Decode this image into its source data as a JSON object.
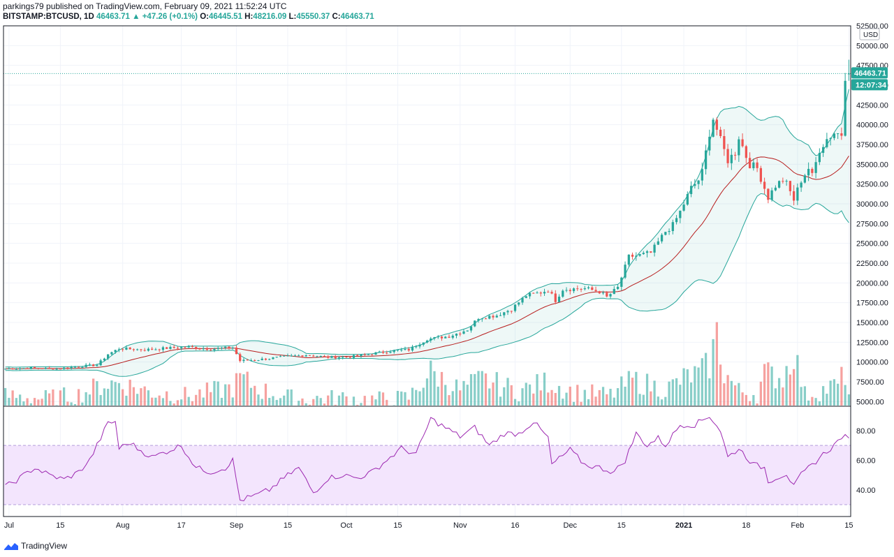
{
  "header": {
    "publisher_line": "parkings79 published on TradingView.com, February 09, 2021 11:52:24 UTC",
    "symbol": "BITSTAMP:BTCUSD, 1D",
    "last": "46463.71",
    "change": "▲ +47.26 (+0.1%)",
    "o_label": "O:",
    "o_value": "46445.51",
    "h_label": "H:",
    "h_value": "48216.09",
    "l_label": "L:",
    "l_value": "45550.37",
    "c_label": "C:",
    "c_value": "46463.71"
  },
  "footer": {
    "brand": "TradingView"
  },
  "colors": {
    "up": "#26a69a",
    "down": "#ef5350",
    "band": "#26a69a",
    "basis": "#b71c1c",
    "rsi": "#9c27b0",
    "rsi_fill": "#f3e5fd"
  },
  "chart_data": [
    {
      "type": "candlestick",
      "title": "BITSTAMP:BTCUSD, 1D",
      "currency": "USD",
      "ylim": [
        4500,
        52500
      ],
      "y_ticks": [
        5000,
        7500,
        10000,
        12500,
        15000,
        17500,
        20000,
        22500,
        25000,
        27500,
        30000,
        32500,
        35000,
        37500,
        40000,
        42500,
        45000,
        47500,
        50000,
        52500
      ],
      "x_ticks": [
        {
          "label": "Jul",
          "day": 1
        },
        {
          "label": "15",
          "day": 15
        },
        {
          "label": "Aug",
          "day": 32
        },
        {
          "label": "17",
          "day": 48
        },
        {
          "label": "Sep",
          "day": 63
        },
        {
          "label": "15",
          "day": 77
        },
        {
          "label": "Oct",
          "day": 93
        },
        {
          "label": "15",
          "day": 107
        },
        {
          "label": "Nov",
          "day": 124
        },
        {
          "label": "16",
          "day": 139
        },
        {
          "label": "Dec",
          "day": 154
        },
        {
          "label": "15",
          "day": 168
        },
        {
          "label": "2021",
          "day": 185
        },
        {
          "label": "18",
          "day": 202
        },
        {
          "label": "Feb",
          "day": 216
        },
        {
          "label": "15",
          "day": 230
        }
      ],
      "last_price_label": "46463.71",
      "countdown_label": "12:07:34",
      "close_keypoints": [
        [
          0,
          9150
        ],
        [
          7,
          9250
        ],
        [
          14,
          9150
        ],
        [
          21,
          9500
        ],
        [
          25,
          9600
        ],
        [
          28,
          11000
        ],
        [
          31,
          11700
        ],
        [
          38,
          11550
        ],
        [
          44,
          11750
        ],
        [
          50,
          11900
        ],
        [
          56,
          11650
        ],
        [
          62,
          11850
        ],
        [
          64,
          10150
        ],
        [
          70,
          10350
        ],
        [
          76,
          10650
        ],
        [
          82,
          10900
        ],
        [
          88,
          10600
        ],
        [
          94,
          10650
        ],
        [
          100,
          11050
        ],
        [
          106,
          11450
        ],
        [
          110,
          11550
        ],
        [
          115,
          12900
        ],
        [
          121,
          13250
        ],
        [
          126,
          14100
        ],
        [
          129,
          15600
        ],
        [
          134,
          15900
        ],
        [
          138,
          16700
        ],
        [
          142,
          18400
        ],
        [
          146,
          18800
        ],
        [
          148,
          19100
        ],
        [
          150,
          17800
        ],
        [
          152,
          19200
        ],
        [
          158,
          19300
        ],
        [
          162,
          18900
        ],
        [
          164,
          18200
        ],
        [
          167,
          19400
        ],
        [
          170,
          23300
        ],
        [
          173,
          23500
        ],
        [
          176,
          23800
        ],
        [
          180,
          26500
        ],
        [
          182,
          27300
        ],
        [
          184,
          29000
        ],
        [
          187,
          32000
        ],
        [
          189,
          33000
        ],
        [
          190,
          34000
        ],
        [
          192,
          39000
        ],
        [
          193,
          40800
        ],
        [
          195,
          38000
        ],
        [
          197,
          35500
        ],
        [
          199,
          36500
        ],
        [
          200,
          38500
        ],
        [
          202,
          36000
        ],
        [
          203,
          35000
        ],
        [
          205,
          34500
        ],
        [
          207,
          32000
        ],
        [
          208,
          30800
        ],
        [
          210,
          32300
        ],
        [
          212,
          33000
        ],
        [
          213,
          32500
        ],
        [
          215,
          30500
        ],
        [
          217,
          33000
        ],
        [
          219,
          34500
        ],
        [
          220,
          33500
        ],
        [
          222,
          36900
        ],
        [
          224,
          38200
        ],
        [
          226,
          39000
        ],
        [
          228,
          38800
        ],
        [
          229,
          46200
        ],
        [
          230,
          46463
        ]
      ],
      "volume_keypoints": [
        [
          0,
          6200
        ],
        [
          10,
          5800
        ],
        [
          20,
          6400
        ],
        [
          27,
          8200
        ],
        [
          31,
          8400
        ],
        [
          40,
          6800
        ],
        [
          50,
          6200
        ],
        [
          62,
          7600
        ],
        [
          64,
          9200
        ],
        [
          70,
          7100
        ],
        [
          80,
          5600
        ],
        [
          90,
          5900
        ],
        [
          100,
          5600
        ],
        [
          110,
          5900
        ],
        [
          116,
          10200
        ],
        [
          124,
          7200
        ],
        [
          130,
          9000
        ],
        [
          140,
          7000
        ],
        [
          148,
          8600
        ],
        [
          155,
          6800
        ],
        [
          165,
          6300
        ],
        [
          171,
          8900
        ],
        [
          180,
          7200
        ],
        [
          186,
          9500
        ],
        [
          189,
          9800
        ],
        [
          192,
          11500
        ],
        [
          194,
          16600
        ],
        [
          196,
          10100
        ],
        [
          200,
          7000
        ],
        [
          205,
          6500
        ],
        [
          207,
          10000
        ],
        [
          212,
          9200
        ],
        [
          215,
          13700
        ],
        [
          218,
          6400
        ],
        [
          222,
          7000
        ],
        [
          227,
          8000
        ],
        [
          229,
          10000
        ],
        [
          230,
          6500
        ]
      ],
      "rsi": {
        "ylim": [
          22,
          96
        ],
        "ticks": [
          40,
          60,
          80
        ],
        "upper": 70,
        "lower": 30,
        "last": 75,
        "keypoints": [
          [
            0,
            42
          ],
          [
            4,
            48
          ],
          [
            8,
            55
          ],
          [
            12,
            50
          ],
          [
            16,
            47
          ],
          [
            20,
            52
          ],
          [
            23,
            60
          ],
          [
            26,
            75
          ],
          [
            28,
            85
          ],
          [
            30,
            86
          ],
          [
            31,
            68
          ],
          [
            34,
            72
          ],
          [
            36,
            68
          ],
          [
            40,
            62
          ],
          [
            44,
            66
          ],
          [
            48,
            70
          ],
          [
            52,
            55
          ],
          [
            56,
            52
          ],
          [
            60,
            55
          ],
          [
            62,
            60
          ],
          [
            64,
            33
          ],
          [
            68,
            36
          ],
          [
            72,
            40
          ],
          [
            76,
            48
          ],
          [
            80,
            55
          ],
          [
            84,
            38
          ],
          [
            88,
            48
          ],
          [
            92,
            50
          ],
          [
            96,
            48
          ],
          [
            100,
            52
          ],
          [
            104,
            60
          ],
          [
            108,
            68
          ],
          [
            112,
            64
          ],
          [
            116,
            88
          ],
          [
            120,
            82
          ],
          [
            124,
            76
          ],
          [
            128,
            82
          ],
          [
            132,
            70
          ],
          [
            136,
            78
          ],
          [
            140,
            78
          ],
          [
            144,
            86
          ],
          [
            148,
            75
          ],
          [
            149,
            57
          ],
          [
            152,
            63
          ],
          [
            154,
            67
          ],
          [
            158,
            57
          ],
          [
            162,
            55
          ],
          [
            166,
            52
          ],
          [
            169,
            60
          ],
          [
            172,
            78
          ],
          [
            175,
            70
          ],
          [
            178,
            75
          ],
          [
            180,
            70
          ],
          [
            184,
            84
          ],
          [
            188,
            84
          ],
          [
            192,
            90
          ],
          [
            195,
            80
          ],
          [
            197,
            62
          ],
          [
            200,
            68
          ],
          [
            204,
            57
          ],
          [
            207,
            55
          ],
          [
            208,
            46
          ],
          [
            211,
            49
          ],
          [
            213,
            51
          ],
          [
            215,
            42
          ],
          [
            217,
            50
          ],
          [
            220,
            57
          ],
          [
            223,
            64
          ],
          [
            226,
            70
          ],
          [
            228,
            76
          ],
          [
            230,
            75
          ]
        ]
      }
    }
  ]
}
